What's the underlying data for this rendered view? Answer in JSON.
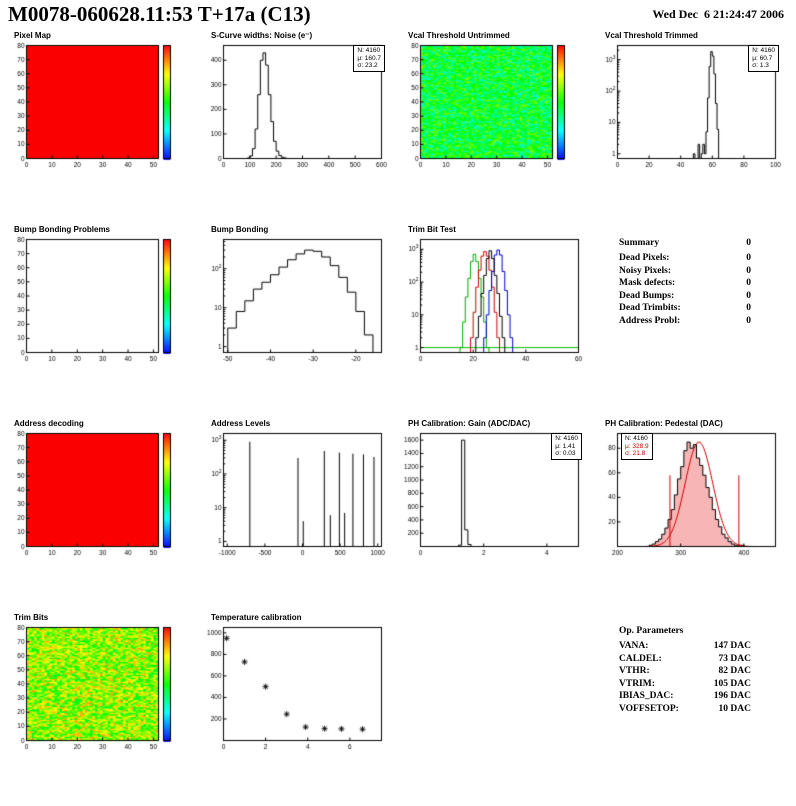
{
  "header": {
    "title": "M0078-060628.11:53 T+17a (C13)",
    "date": "Wed Dec  6 21:24:47 2006"
  },
  "summary": {
    "title": "Summary",
    "total": "0",
    "items": [
      {
        "label": "Dead Pixels:",
        "value": "0"
      },
      {
        "label": "Noisy Pixels:",
        "value": "0"
      },
      {
        "label": "Mask defects:",
        "value": "0"
      },
      {
        "label": "Dead Bumps:",
        "value": "0"
      },
      {
        "label": "Dead Trimbits:",
        "value": "0"
      },
      {
        "label": "Address Probl:",
        "value": "0"
      }
    ]
  },
  "op_parameters": {
    "title": "Op. Parameters",
    "items": [
      {
        "label": "VANA:",
        "value": "147 DAC"
      },
      {
        "label": "CALDEL:",
        "value": "73 DAC"
      },
      {
        "label": "VTHR:",
        "value": "82 DAC"
      },
      {
        "label": "VTRIM:",
        "value": "105 DAC"
      },
      {
        "label": "IBIAS_DAC:",
        "value": "196 DAC"
      },
      {
        "label": "VOFFSETOP:",
        "value": "10 DAC"
      }
    ]
  },
  "chart_data": [
    {
      "id": "pixel-map",
      "title": "Pixel Map",
      "type": "heatmap",
      "grid": [
        52,
        80
      ],
      "fill": "uniform-max",
      "xlim": [
        0,
        52
      ],
      "ylim": [
        0,
        80
      ],
      "xticks": [
        0,
        10,
        20,
        30,
        40,
        50
      ],
      "yticks": [
        0,
        10,
        20,
        30,
        40,
        50,
        60,
        70,
        80
      ],
      "colorbar": true,
      "max_color": "#fa0000"
    },
    {
      "id": "scurve-noise",
      "title": "S-Curve widths: Noise (e⁻)",
      "type": "histogram",
      "stats": [
        "N: 4160",
        "μ: 160.7",
        "σ: 23.2"
      ],
      "xlim": [
        0,
        600
      ],
      "xticks": [
        0,
        100,
        200,
        300,
        400,
        500,
        600
      ],
      "ylim": [
        0,
        460
      ],
      "yticks": [
        0,
        100,
        200,
        300,
        400
      ],
      "bins": {
        "start": 90,
        "width": 10,
        "counts": [
          2,
          10,
          40,
          120,
          260,
          400,
          430,
          380,
          260,
          150,
          70,
          30,
          12,
          5,
          2
        ]
      },
      "color": "#000000"
    },
    {
      "id": "vcal-threshold-untrimmed",
      "title": "Vcal Threshold Untrimmed",
      "type": "heatmap",
      "grid": [
        52,
        80
      ],
      "fill": "noise",
      "noise_range": [
        0.3,
        0.62
      ],
      "seed": 7,
      "xlim": [
        0,
        52
      ],
      "ylim": [
        0,
        80
      ],
      "xticks": [
        0,
        10,
        20,
        30,
        40,
        50
      ],
      "yticks": [
        0,
        10,
        20,
        30,
        40,
        50,
        60,
        70,
        80
      ],
      "colorbar": true
    },
    {
      "id": "vcal-threshold-trimmed",
      "title": "Vcal Threshold Trimmed",
      "type": "histogram",
      "stats": [
        "N: 4160",
        "μ: 60.7",
        "σ: 1.3"
      ],
      "xlim": [
        0,
        100
      ],
      "xticks": [
        0,
        20,
        40,
        60,
        80,
        100
      ],
      "ylog": [
        -0.15,
        3.45
      ],
      "bins": {
        "start": 48,
        "width": 1,
        "counts": [
          1,
          0,
          0,
          2,
          0,
          1,
          2,
          1,
          5,
          60,
          600,
          1800,
          1300,
          350,
          40,
          6
        ]
      },
      "color": "#000000"
    },
    {
      "id": "bump-bonding-problems",
      "title": "Bump Bonding Problems",
      "type": "heatmap",
      "grid": [
        52,
        80
      ],
      "fill": "uniform-zero",
      "xlim": [
        0,
        52
      ],
      "ylim": [
        0,
        80
      ],
      "xticks": [
        0,
        10,
        20,
        30,
        40,
        50
      ],
      "yticks": [
        0,
        10,
        20,
        30,
        40,
        50,
        60,
        70,
        80
      ],
      "colorbar": true
    },
    {
      "id": "bump-bonding",
      "title": "Bump Bonding",
      "type": "histogram",
      "xlim": [
        -51,
        -14
      ],
      "xticks": [
        -50,
        -40,
        -30,
        -20
      ],
      "ylog": [
        -0.15,
        2.75
      ],
      "bins": {
        "start": -50,
        "width": 2,
        "counts": [
          3,
          8,
          15,
          30,
          45,
          70,
          110,
          170,
          240,
          300,
          280,
          200,
          120,
          60,
          25,
          8,
          2
        ]
      },
      "color": "#000000"
    },
    {
      "id": "trim-bit-test",
      "title": "Trim Bit Test",
      "type": "multi-histogram",
      "xlim": [
        0,
        60
      ],
      "xticks": [
        0,
        20,
        40,
        60
      ],
      "ylog": [
        -0.15,
        3.3
      ],
      "baseline": {
        "value": 1,
        "color": "#00bb00"
      },
      "series": [
        {
          "name": "trim-green",
          "color": "#00aa00",
          "bins": {
            "start": 15,
            "width": 1,
            "counts": [
              1,
              6,
              35,
              130,
              420,
              700,
              420,
              130,
              35,
              6,
              1
            ]
          }
        },
        {
          "name": "trim-red",
          "color": "#cc0000",
          "bins": {
            "start": 19,
            "width": 1,
            "counts": [
              2,
              12,
              70,
              230,
              620,
              850,
              620,
              230,
              70,
              12,
              2
            ]
          }
        },
        {
          "name": "trim-blue",
          "color": "#0000cc",
          "bins": {
            "start": 24,
            "width": 1,
            "counts": [
              2,
              10,
              55,
              210,
              670,
              950,
              670,
              210,
              55,
              10,
              2
            ]
          }
        },
        {
          "name": "trim-black",
          "color": "#000000",
          "bins": {
            "start": 21,
            "width": 1,
            "counts": [
              2,
              9,
              45,
              160,
              520,
              900,
              520,
              160,
              45,
              9,
              2
            ]
          }
        }
      ]
    },
    {
      "id": "address-decoding",
      "title": "Address decoding",
      "type": "heatmap",
      "grid": [
        52,
        80
      ],
      "fill": "uniform-max",
      "xlim": [
        0,
        52
      ],
      "ylim": [
        0,
        80
      ],
      "xticks": [
        0,
        10,
        20,
        30,
        40,
        50
      ],
      "yticks": [
        0,
        10,
        20,
        30,
        40,
        50,
        60,
        70,
        80
      ],
      "colorbar": true,
      "max_color": "#fa0000"
    },
    {
      "id": "address-levels",
      "title": "Address Levels",
      "type": "spikes",
      "xlim": [
        -1050,
        1050
      ],
      "xticks": [
        -1000,
        -500,
        0,
        500,
        1000
      ],
      "ylog": [
        -0.15,
        3.2
      ],
      "spikes": [
        [
          -700,
          900
        ],
        [
          -60,
          300
        ],
        [
          10,
          4
        ],
        [
          290,
          480
        ],
        [
          370,
          6
        ],
        [
          490,
          430
        ],
        [
          560,
          7
        ],
        [
          670,
          400
        ],
        [
          810,
          380
        ],
        [
          950,
          320
        ]
      ],
      "color": "#000000"
    },
    {
      "id": "ph-calibration-gain",
      "title": "PH Calibration: Gain (ADC/DAC)",
      "type": "histogram",
      "stats": [
        "N: 4160",
        "μ: 1.41",
        "σ: 0.03"
      ],
      "xlim": [
        0,
        5
      ],
      "xticks": [
        0,
        2,
        4
      ],
      "ylim": [
        0,
        1700
      ],
      "yticks": [
        200,
        400,
        600,
        800,
        1000,
        1200,
        1400,
        1600
      ],
      "bins": {
        "start": 1.2,
        "width": 0.1,
        "counts": [
          20,
          1600,
          250,
          30
        ]
      },
      "color": "#000000"
    },
    {
      "id": "ph-calibration-pedestal",
      "title": "PH Calibration: Pedestal (DAC)",
      "type": "histogram",
      "stats": [
        "N: 4160",
        "μ: 328.9",
        "σ: 21.8"
      ],
      "xlim": [
        200,
        450
      ],
      "xticks": [
        200,
        300,
        400
      ],
      "ylim": [
        0,
        92
      ],
      "yticks": [
        20,
        40,
        60,
        80
      ],
      "bins": {
        "start": 250,
        "width": 5,
        "counts": [
          1,
          2,
          4,
          6,
          10,
          15,
          22,
          30,
          42,
          55,
          65,
          78,
          85,
          80,
          83,
          72,
          66,
          58,
          48,
          40,
          30,
          22,
          16,
          10,
          7,
          4,
          2,
          1,
          1,
          1,
          0,
          0
        ]
      },
      "fill": "rgba(235,70,70,0.4)",
      "color": "#000000",
      "fit": {
        "mu": 328.9,
        "sigma": 21.8,
        "amp": 85,
        "lines": [
          283,
          392
        ],
        "line_top": 58,
        "color": "#cc0000"
      }
    },
    {
      "id": "trim-bits",
      "title": "Trim Bits",
      "type": "heatmap",
      "grid": [
        52,
        80
      ],
      "fill": "noise",
      "noise_range": [
        0.45,
        0.85
      ],
      "seed": 13,
      "xlim": [
        0,
        52
      ],
      "ylim": [
        0,
        80
      ],
      "xticks": [
        0,
        10,
        20,
        30,
        40,
        50
      ],
      "yticks": [
        0,
        10,
        20,
        30,
        40,
        50,
        60,
        70,
        80
      ],
      "colorbar": true
    },
    {
      "id": "temperature-calibration",
      "title": "Temperature calibration",
      "type": "scatter",
      "marker": "*",
      "xlim": [
        0,
        7.5
      ],
      "xticks": [
        0,
        2,
        4,
        6
      ],
      "ylim": [
        0,
        1050
      ],
      "yticks": [
        200,
        400,
        600,
        800,
        1000
      ],
      "points": [
        [
          0.15,
          950
        ],
        [
          1.0,
          730
        ],
        [
          2.0,
          500
        ],
        [
          3.0,
          245
        ],
        [
          3.9,
          125
        ],
        [
          4.8,
          110
        ],
        [
          5.6,
          108
        ],
        [
          6.6,
          105
        ]
      ],
      "color": "#000000"
    }
  ]
}
